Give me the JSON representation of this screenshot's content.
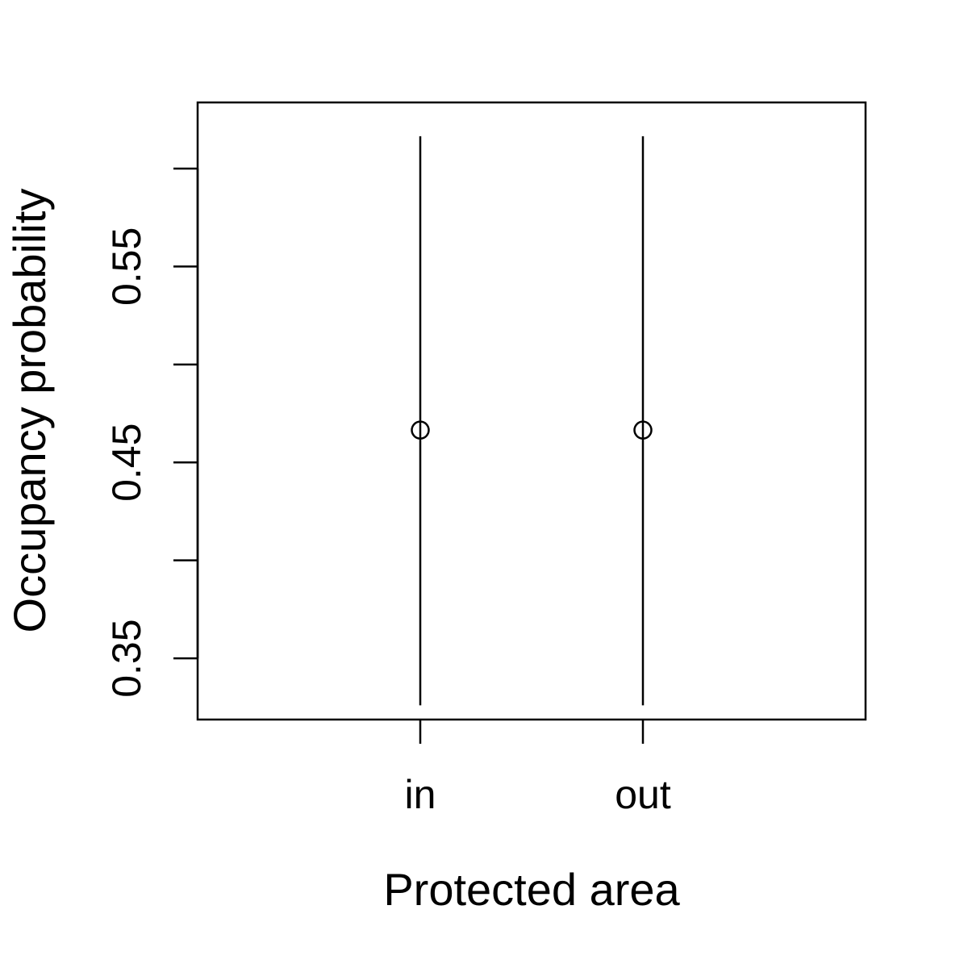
{
  "chart_data": {
    "type": "scatter",
    "title": "",
    "xlabel": "Protected area",
    "ylabel": "Occupancy probability",
    "categories": [
      "in",
      "out"
    ],
    "estimates": [
      0.4665,
      0.4665
    ],
    "lower": [
      0.326,
      0.326
    ],
    "upper": [
      0.6165,
      0.6165
    ],
    "ylim": [
      0.31875,
      0.63375
    ],
    "y_ticks": [
      0.35,
      0.4,
      0.45,
      0.5,
      0.55,
      0.6
    ],
    "y_tick_labels": [
      "0.35",
      "",
      "0.45",
      "",
      "0.55",
      ""
    ],
    "grid": false,
    "legend": "none",
    "colors": {
      "line": "#000000",
      "point": "#000000",
      "background": "#ffffff"
    }
  }
}
